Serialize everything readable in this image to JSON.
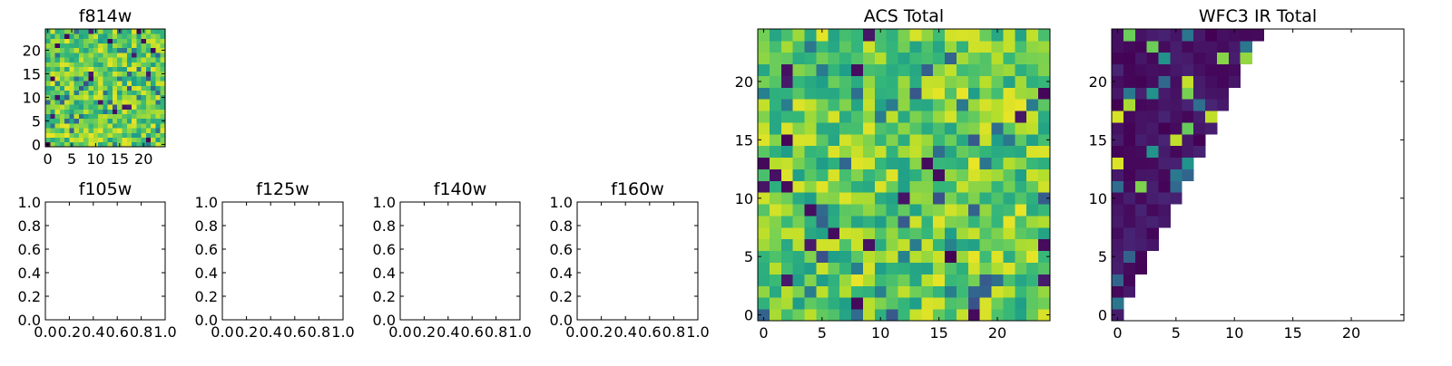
{
  "chart_data": [
    {
      "id": "f814w",
      "type": "heatmap",
      "title": "f814w",
      "grid_size": [
        25,
        25
      ],
      "origin": "lower",
      "colormap": "viridis",
      "xlim": [
        -0.5,
        24.5
      ],
      "ylim": [
        -0.5,
        24.5
      ],
      "xticks": [
        0,
        5,
        10,
        15,
        20
      ],
      "yticks": [
        0,
        5,
        10,
        15,
        20
      ],
      "value_range": [
        0,
        1
      ],
      "values_note": "noise-like field, mostly values 0.6-0.95 with scattered low outliers",
      "seed": 7
    },
    {
      "id": "f105w",
      "type": "heatmap",
      "title": "f105w",
      "empty": true,
      "xlim": [
        0,
        1
      ],
      "ylim": [
        0,
        1
      ],
      "xticks": [
        "0.0",
        "0.2",
        "0.4",
        "0.6",
        "0.8",
        "1.0"
      ],
      "yticks": [
        "0.0",
        "0.2",
        "0.4",
        "0.6",
        "0.8",
        "1.0"
      ]
    },
    {
      "id": "f125w",
      "type": "heatmap",
      "title": "f125w",
      "empty": true,
      "xlim": [
        0,
        1
      ],
      "ylim": [
        0,
        1
      ],
      "xticks": [
        "0.0",
        "0.2",
        "0.4",
        "0.6",
        "0.8",
        "1.0"
      ],
      "yticks": [
        "0.0",
        "0.2",
        "0.4",
        "0.6",
        "0.8",
        "1.0"
      ]
    },
    {
      "id": "f140w",
      "type": "heatmap",
      "title": "f140w",
      "empty": true,
      "xlim": [
        0,
        1
      ],
      "ylim": [
        0,
        1
      ],
      "xticks": [
        "0.0",
        "0.2",
        "0.4",
        "0.6",
        "0.8",
        "1.0"
      ],
      "yticks": [
        "0.0",
        "0.2",
        "0.4",
        "0.6",
        "0.8",
        "1.0"
      ]
    },
    {
      "id": "f160w",
      "type": "heatmap",
      "title": "f160w",
      "empty": true,
      "xlim": [
        0,
        1
      ],
      "ylim": [
        0,
        1
      ],
      "xticks": [
        "0.0",
        "0.2",
        "0.4",
        "0.6",
        "0.8",
        "1.0"
      ],
      "yticks": [
        "0.0",
        "0.2",
        "0.4",
        "0.6",
        "0.8",
        "1.0"
      ]
    },
    {
      "id": "acs_total",
      "type": "heatmap",
      "title": "ACS Total",
      "grid_size": [
        25,
        25
      ],
      "origin": "lower",
      "colormap": "viridis",
      "xlim": [
        -0.5,
        24.5
      ],
      "ylim": [
        -0.5,
        24.5
      ],
      "xticks": [
        0,
        5,
        10,
        15,
        20
      ],
      "yticks": [
        0,
        5,
        10,
        15,
        20
      ],
      "value_range": [
        0,
        1
      ],
      "values_note": "noise-like field, mostly values 0.6-0.95 with scattered low outliers",
      "seed": 19
    },
    {
      "id": "wfc3_ir_total",
      "type": "heatmap",
      "title": "WFC3 IR Total",
      "grid_size": [
        25,
        25
      ],
      "origin": "lower",
      "colormap": "viridis",
      "xlim": [
        -0.5,
        24.5
      ],
      "ylim": [
        -0.5,
        24.5
      ],
      "xticks": [
        0,
        5,
        10,
        15,
        20
      ],
      "yticks": [
        0,
        5,
        10,
        15,
        20
      ],
      "value_range": [
        0,
        1
      ],
      "masked_region": "cells with x > y/2 are blank (upper-left triangle filled, row y spans x = 0..floor(y/2))",
      "values_note": "mostly very low values 0.0-0.1 (dark purple) with a few medium (0.35-0.55) and high (0.75-0.95) cells",
      "seed": 33
    }
  ],
  "colors": {
    "viridis_stops": [
      "#440154",
      "#482878",
      "#3e4989",
      "#31688e",
      "#26828e",
      "#1f9e89",
      "#35b779",
      "#6ece58",
      "#b5de2b",
      "#fde725"
    ],
    "axes_edge": "#000000",
    "background": "#ffffff"
  }
}
